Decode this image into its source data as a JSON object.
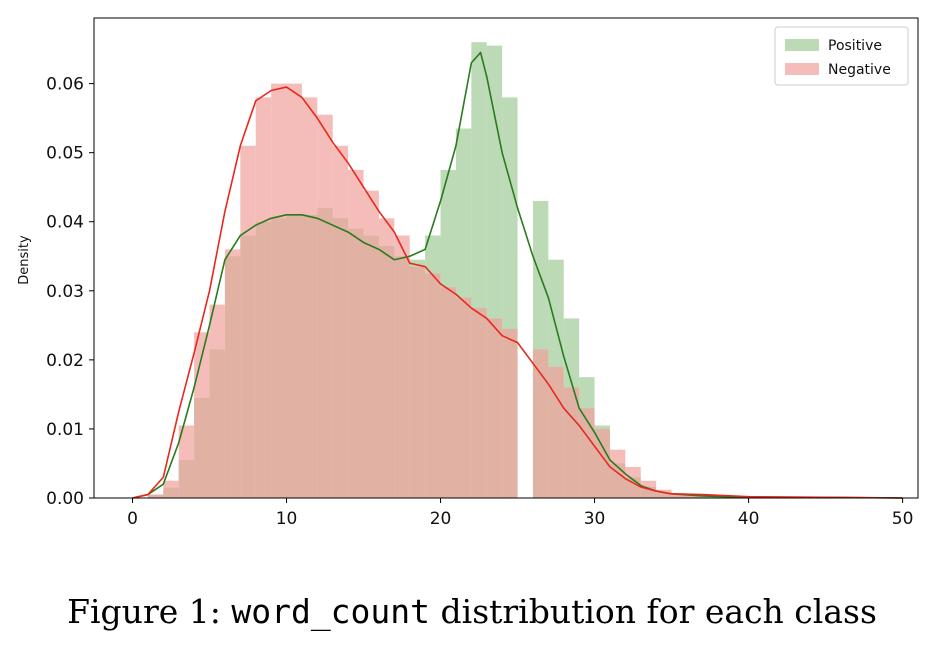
{
  "caption": {
    "prefix": "Figure 1: ",
    "code": "word_count",
    "suffix": " distribution for each class"
  },
  "chart_data": {
    "type": "histogram",
    "ylabel": "Density",
    "xlabel": "",
    "xlim": [
      -2.5,
      51
    ],
    "ylim": [
      0,
      0.0695
    ],
    "xticks": [
      0,
      10,
      20,
      30,
      40,
      50
    ],
    "yticks": [
      0.0,
      0.01,
      0.02,
      0.03,
      0.04,
      0.05,
      0.06
    ],
    "ytick_labels": [
      "0.00",
      "0.01",
      "0.02",
      "0.03",
      "0.04",
      "0.05",
      "0.06"
    ],
    "legend": {
      "placement": "top-right"
    },
    "grid": false,
    "bin_edges": [
      1,
      2,
      3,
      4,
      5,
      6,
      7,
      8,
      9,
      10,
      11,
      12,
      13,
      14,
      15,
      16,
      17,
      18,
      19,
      20,
      21,
      22,
      23,
      24,
      25,
      26,
      27,
      28,
      29,
      30,
      31,
      32,
      33,
      34,
      35,
      36,
      37,
      38,
      39,
      40,
      41,
      42,
      43,
      44,
      45,
      46,
      47,
      48,
      49,
      50
    ],
    "series": [
      {
        "name": "Positive",
        "color": "#2ca02c",
        "bar_color": "#9fcb95",
        "line_color": "#2a7a1e",
        "densities": [
          0.0005,
          0.0015,
          0.0055,
          0.0145,
          0.0215,
          0.035,
          0.038,
          0.04,
          0.0405,
          0.041,
          0.041,
          0.042,
          0.0405,
          0.039,
          0.038,
          0.0365,
          0.035,
          0.0345,
          0.038,
          0.0475,
          0.0535,
          0.066,
          0.0655,
          0.058,
          0.0,
          0.043,
          0.0345,
          0.026,
          0.0175,
          0.0105,
          0.005,
          0.003,
          0.0016,
          0.0008,
          0.0004,
          0.0003,
          0.0002,
          0.0001,
          0.0001,
          0.0001,
          0.0001,
          0.0001,
          0.0001,
          0.0001,
          0.0001,
          0.0001,
          0.0001,
          0.0001,
          0.0001
        ],
        "kde_points": [
          [
            0,
            0.0
          ],
          [
            1,
            0.0005
          ],
          [
            2,
            0.002
          ],
          [
            3,
            0.008
          ],
          [
            4,
            0.016
          ],
          [
            5,
            0.025
          ],
          [
            6,
            0.0345
          ],
          [
            7,
            0.038
          ],
          [
            8,
            0.0395
          ],
          [
            9,
            0.0405
          ],
          [
            10,
            0.041
          ],
          [
            11,
            0.041
          ],
          [
            12,
            0.0405
          ],
          [
            13,
            0.0395
          ],
          [
            14,
            0.0385
          ],
          [
            15,
            0.037
          ],
          [
            16,
            0.036
          ],
          [
            17,
            0.0345
          ],
          [
            18,
            0.035
          ],
          [
            19,
            0.036
          ],
          [
            20,
            0.043
          ],
          [
            21,
            0.051
          ],
          [
            22,
            0.063
          ],
          [
            22.6,
            0.0645
          ],
          [
            23,
            0.061
          ],
          [
            24,
            0.05
          ],
          [
            25,
            0.042
          ],
          [
            26,
            0.035
          ],
          [
            27,
            0.029
          ],
          [
            28,
            0.0205
          ],
          [
            29,
            0.013
          ],
          [
            30,
            0.0095
          ],
          [
            31,
            0.0055
          ],
          [
            32,
            0.0035
          ],
          [
            33,
            0.0018
          ],
          [
            34,
            0.001
          ],
          [
            35,
            0.0006
          ],
          [
            37,
            0.0003
          ],
          [
            40,
            0.0001
          ],
          [
            45,
            0.0001
          ],
          [
            50,
            0.0
          ]
        ]
      },
      {
        "name": "Negative",
        "color": "#d62728",
        "bar_color": "#f1a19c",
        "line_color": "#e8281e",
        "densities": [
          0.0005,
          0.0025,
          0.0105,
          0.024,
          0.028,
          0.036,
          0.051,
          0.058,
          0.06,
          0.06,
          0.058,
          0.0555,
          0.051,
          0.0475,
          0.0445,
          0.0405,
          0.038,
          0.0335,
          0.0325,
          0.0305,
          0.029,
          0.0275,
          0.026,
          0.0245,
          0.0,
          0.0215,
          0.019,
          0.016,
          0.013,
          0.01,
          0.007,
          0.0045,
          0.0025,
          0.0012,
          0.0007,
          0.0004,
          0.0003,
          0.0002,
          0.0001,
          0.0001,
          0.0001,
          0.0001,
          0.0001,
          0.0001,
          0.0001,
          0.0001,
          0.0001,
          0.0001,
          0.0001
        ],
        "kde_points": [
          [
            0,
            0.0
          ],
          [
            1,
            0.0005
          ],
          [
            2,
            0.003
          ],
          [
            3,
            0.0125
          ],
          [
            4,
            0.021
          ],
          [
            5,
            0.03
          ],
          [
            6,
            0.0415
          ],
          [
            7,
            0.051
          ],
          [
            8,
            0.0575
          ],
          [
            9,
            0.059
          ],
          [
            10,
            0.0595
          ],
          [
            11,
            0.058
          ],
          [
            12,
            0.055
          ],
          [
            13,
            0.0515
          ],
          [
            14,
            0.0485
          ],
          [
            15,
            0.045
          ],
          [
            16,
            0.0415
          ],
          [
            17,
            0.0385
          ],
          [
            18,
            0.034
          ],
          [
            19,
            0.0335
          ],
          [
            20,
            0.031
          ],
          [
            21,
            0.0295
          ],
          [
            22,
            0.0275
          ],
          [
            23,
            0.026
          ],
          [
            24,
            0.0235
          ],
          [
            25,
            0.0225
          ],
          [
            26,
            0.0195
          ],
          [
            27,
            0.0165
          ],
          [
            28,
            0.013
          ],
          [
            29,
            0.0105
          ],
          [
            30,
            0.0075
          ],
          [
            31,
            0.0045
          ],
          [
            32,
            0.0028
          ],
          [
            33,
            0.0016
          ],
          [
            34,
            0.001
          ],
          [
            35,
            0.0006
          ],
          [
            37,
            0.0005
          ],
          [
            40,
            0.0002
          ],
          [
            45,
            0.0001
          ],
          [
            50,
            0.0
          ]
        ]
      }
    ]
  }
}
